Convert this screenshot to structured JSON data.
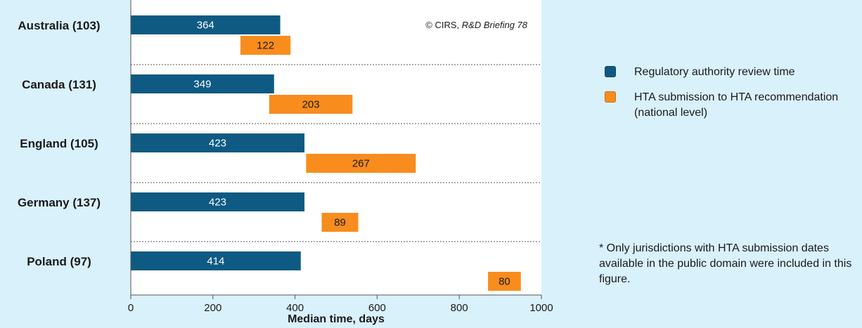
{
  "chart_data": {
    "type": "bar",
    "orientation": "horizontal",
    "categories": [
      "Australia (103)",
      "Canada (131)",
      "England (105)",
      "Germany (137)",
      "Poland (97)"
    ],
    "series": [
      {
        "name": "Regulatory authority review time",
        "color": "#0e5a82",
        "start": [
          0,
          0,
          0,
          0,
          0
        ],
        "values": [
          364,
          349,
          423,
          423,
          414
        ]
      },
      {
        "name": "HTA submission to HTA recommendation (national level)",
        "color": "#f88d1e",
        "start": [
          267,
          337,
          427,
          465,
          870
        ],
        "values": [
          122,
          203,
          267,
          89,
          80
        ]
      }
    ],
    "xlabel": "Median time, days",
    "xlim": [
      0,
      1000
    ],
    "xticks": [
      0,
      200,
      400,
      600,
      800,
      1000
    ],
    "grid": false,
    "legend_position": "right",
    "copyright": "© CIRS, ",
    "copyright_source": "R&D Briefing 78",
    "footnote": "* Only jurisdictions with HTA submission dates available in the public domain were included in this figure."
  }
}
